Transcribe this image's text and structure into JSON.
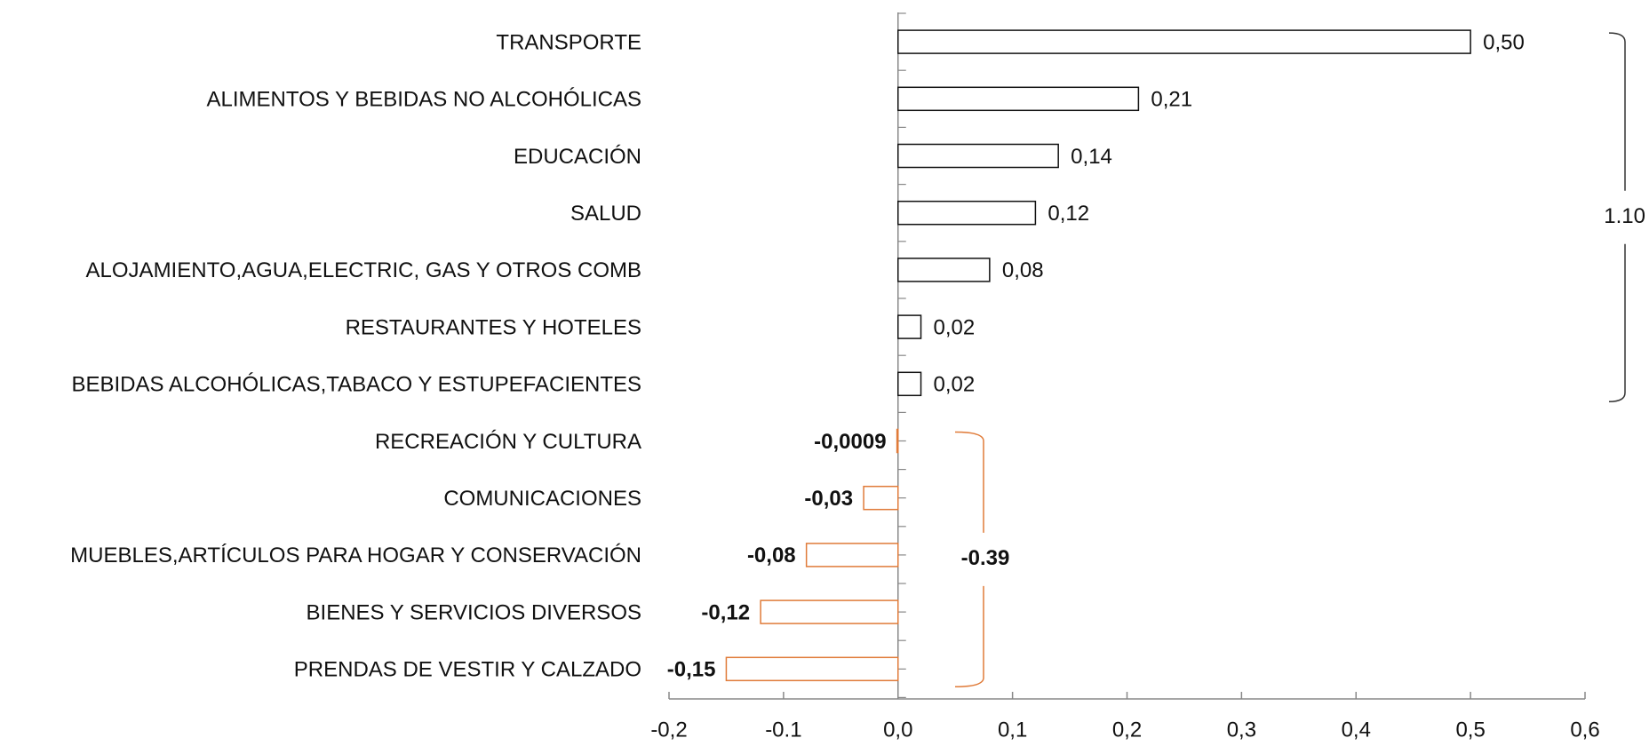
{
  "chart_data": {
    "type": "bar",
    "orientation": "horizontal",
    "categories": [
      "TRANSPORTE",
      "ALIMENTOS Y BEBIDAS NO ALCOHÓLICAS",
      "EDUCACIÓN",
      "SALUD",
      "ALOJAMIENTO,AGUA,ELECTRIC, GAS Y OTROS COMB",
      "RESTAURANTES Y HOTELES",
      "BEBIDAS ALCOHÓLICAS,TABACO Y ESTUPEFACIENTES",
      "RECREACIÓN Y CULTURA",
      "COMUNICACIONES",
      "MUEBLES,ARTÍCULOS PARA HOGAR Y CONSERVACIÓN",
      "BIENES Y SERVICIOS DIVERSOS",
      "PRENDAS DE VESTIR Y CALZADO"
    ],
    "values": [
      0.5,
      0.21,
      0.14,
      0.12,
      0.08,
      0.02,
      0.02,
      -0.0009,
      -0.03,
      -0.08,
      -0.12,
      -0.15
    ],
    "value_labels": [
      "0,50",
      "0,21",
      "0,14",
      "0,12",
      "0,08",
      "0,02",
      "0,02",
      "-0,0009",
      "-0,03",
      "-0,08",
      "-0,12",
      "-0,15"
    ],
    "positive_color": "#ffffff",
    "negative_color": "#e07b39",
    "negative_label_color": "#d98a4e",
    "xlim": [
      -0.2,
      0.6
    ],
    "xticks": [
      {
        "value": -0.2,
        "label": "-0,2"
      },
      -0.1,
      {
        "value": 0.0,
        "label": "0,0"
      },
      {
        "value": 0.1,
        "label": "0,1"
      },
      {
        "value": 0.2,
        "label": "0,2"
      },
      {
        "value": 0.3,
        "label": "0,3"
      },
      {
        "value": 0.4,
        "label": "0,4"
      },
      {
        "value": 0.5,
        "label": "0,5"
      },
      {
        "value": 0.6,
        "label": "0,6"
      }
    ],
    "annotations": [
      {
        "text": "1.10",
        "color": "#111111"
      },
      {
        "text": "-0.39",
        "color": "#b5651d"
      }
    ]
  }
}
